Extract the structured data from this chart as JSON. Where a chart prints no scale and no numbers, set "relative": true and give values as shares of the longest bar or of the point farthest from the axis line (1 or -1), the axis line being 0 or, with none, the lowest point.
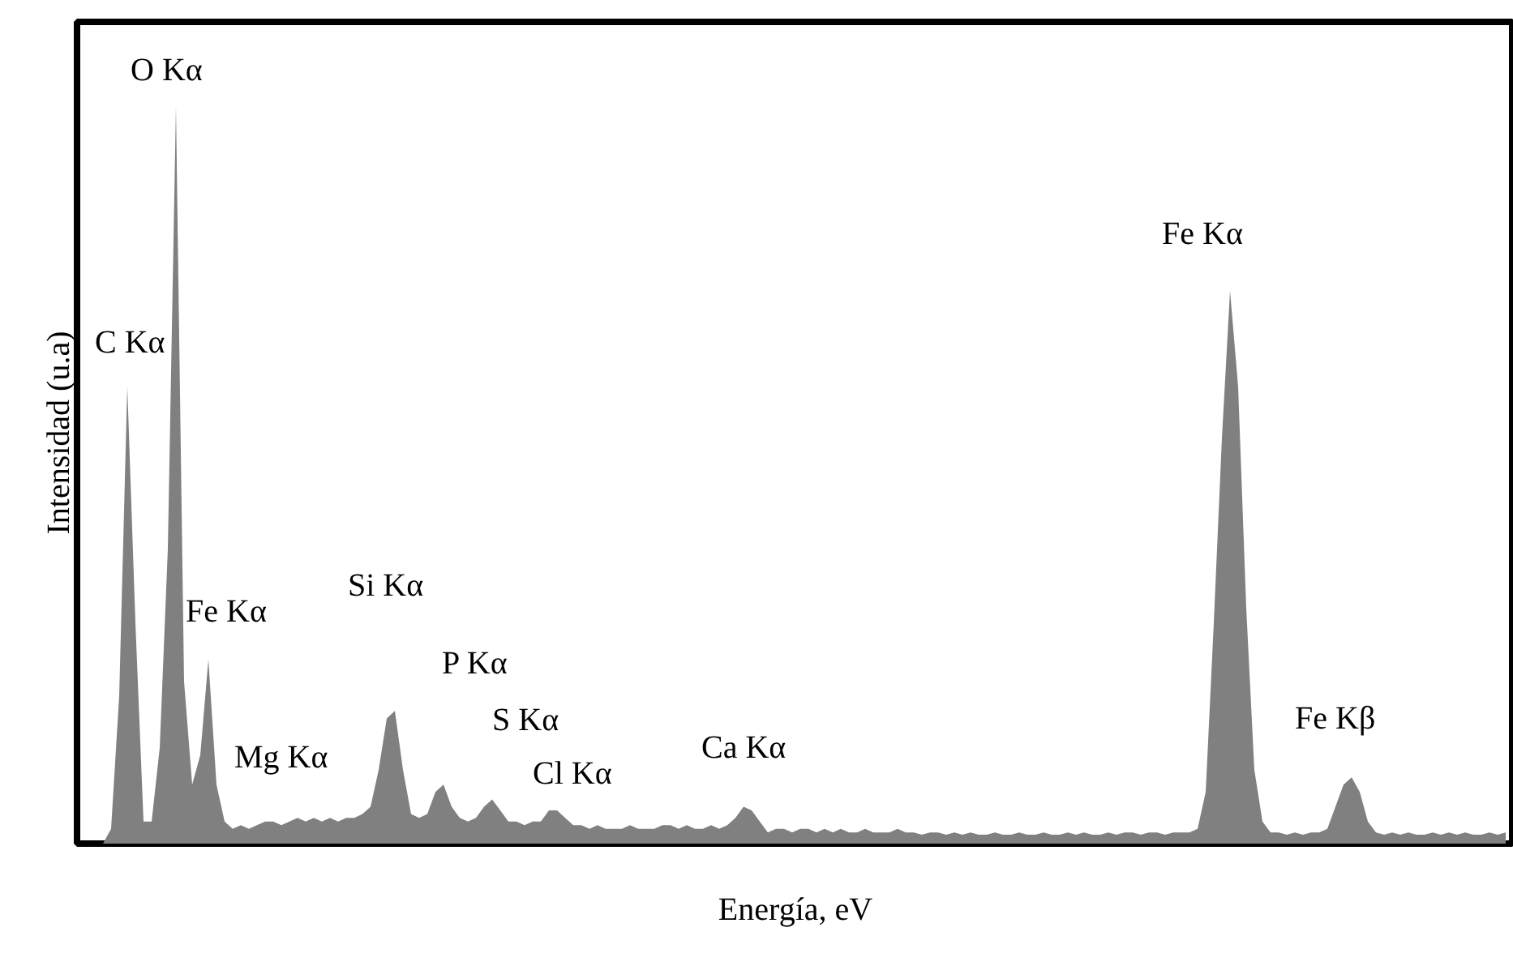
{
  "chart_data": {
    "type": "area",
    "relative": true,
    "color": "#808080",
    "xlabel": "Energía, eV",
    "ylabel": "Intensidad (u.a)",
    "categories": [
      null,
      null,
      null,
      null,
      null,
      null,
      null,
      null,
      null,
      null,
      null,
      null,
      null,
      null,
      null,
      null,
      null,
      null,
      null,
      null,
      null,
      null,
      null,
      null,
      null,
      null,
      null,
      null,
      null,
      null,
      null,
      null,
      null,
      null,
      null,
      null,
      null,
      null,
      null,
      null,
      null,
      null,
      null,
      null,
      null,
      null,
      null,
      null,
      null,
      null,
      null,
      null,
      null,
      null,
      null,
      null,
      null,
      null,
      null,
      null,
      null,
      null,
      null,
      null,
      null,
      null,
      null,
      null,
      null,
      null,
      null,
      null,
      null,
      null,
      null,
      null,
      null,
      null,
      null,
      null,
      null,
      null,
      null,
      null,
      null,
      null,
      null,
      null,
      null,
      null,
      null,
      null,
      null,
      null,
      null,
      null,
      null,
      null,
      null,
      null,
      null,
      null,
      null,
      null,
      null,
      null,
      null,
      null,
      null,
      null,
      null,
      null,
      null,
      null,
      null,
      null,
      null,
      null,
      null,
      null,
      null,
      null,
      null,
      null,
      null,
      null,
      null,
      null,
      null,
      null,
      null,
      null,
      null,
      null,
      null,
      null,
      null,
      null,
      null,
      null,
      null,
      null,
      null,
      null,
      null,
      null,
      null,
      null,
      null,
      null,
      null,
      null,
      null,
      null,
      null,
      null,
      null,
      null,
      null,
      null,
      null,
      null,
      null,
      null,
      null,
      null,
      null,
      null,
      null,
      null,
      null,
      null,
      null,
      null,
      null,
      null,
      null
    ],
    "values": [
      0,
      0,
      0,
      0,
      0.02,
      0.2,
      0.62,
      0.3,
      0.03,
      0.03,
      0.13,
      0.4,
      1,
      0.22,
      0.08,
      0.12,
      0.25,
      0.08,
      0.03,
      0.02,
      0.025,
      0.02,
      0.025,
      0.03,
      0.03,
      0.025,
      0.03,
      0.035,
      0.03,
      0.035,
      0.03,
      0.035,
      0.03,
      0.035,
      0.035,
      0.04,
      0.05,
      0.1,
      0.17,
      0.18,
      0.1,
      0.04,
      0.035,
      0.04,
      0.07,
      0.08,
      0.05,
      0.035,
      0.03,
      0.035,
      0.05,
      0.06,
      0.045,
      0.03,
      0.03,
      0.025,
      0.03,
      0.03,
      0.045,
      0.045,
      0.035,
      0.025,
      0.025,
      0.02,
      0.025,
      0.02,
      0.02,
      0.02,
      0.025,
      0.02,
      0.02,
      0.02,
      0.025,
      0.025,
      0.02,
      0.025,
      0.02,
      0.02,
      0.025,
      0.02,
      0.025,
      0.035,
      0.05,
      0.045,
      0.03,
      0.015,
      0.02,
      0.02,
      0.015,
      0.02,
      0.02,
      0.015,
      0.02,
      0.015,
      0.02,
      0.015,
      0.015,
      0.02,
      0.015,
      0.015,
      0.015,
      0.02,
      0.015,
      0.015,
      0.012,
      0.015,
      0.015,
      0.012,
      0.015,
      0.012,
      0.015,
      0.012,
      0.012,
      0.015,
      0.012,
      0.012,
      0.015,
      0.012,
      0.012,
      0.015,
      0.012,
      0.012,
      0.015,
      0.012,
      0.015,
      0.012,
      0.012,
      0.015,
      0.012,
      0.015,
      0.015,
      0.012,
      0.015,
      0.015,
      0.012,
      0.015,
      0.015,
      0.015,
      0.02,
      0.07,
      0.3,
      0.55,
      0.75,
      0.62,
      0.32,
      0.1,
      0.03,
      0.015,
      0.015,
      0.012,
      0.015,
      0.012,
      0.015,
      0.015,
      0.02,
      0.05,
      0.08,
      0.09,
      0.07,
      0.03,
      0.015,
      0.012,
      0.015,
      0.012,
      0.015,
      0.012,
      0.012,
      0.015,
      0.012,
      0.015,
      0.012,
      0.015,
      0.012,
      0.012,
      0.015,
      0.012,
      0.015
    ],
    "annotations": [
      "O Kα",
      "C Kα",
      "Fe Kα",
      "Si Kα",
      "Mg Kα",
      "P Kα",
      "S Kα",
      "Cl Kα",
      "Ca Kα",
      "Fe Kα",
      "Fe Kβ"
    ]
  }
}
